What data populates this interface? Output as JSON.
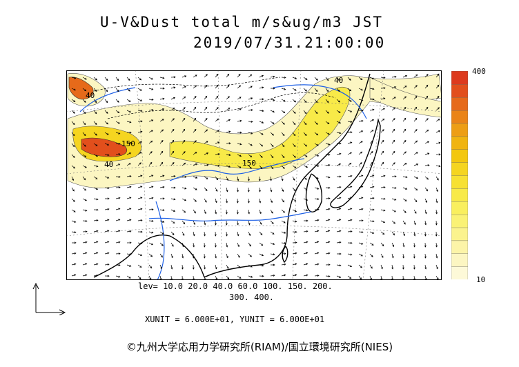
{
  "header": {
    "title": "U-V&Dust total m/s&ug/m3 JST",
    "datetime": "2019/07/31.21:00:00"
  },
  "colorbar": {
    "max_label": "400",
    "min_label": "10",
    "colors": [
      "#fdf9d8",
      "#fcf6c2",
      "#fcf4a8",
      "#fbf38e",
      "#faf275",
      "#f9ef5e",
      "#f8ea48",
      "#f7e133",
      "#f5d520",
      "#f3c70f",
      "#f0b411",
      "#ed9e15",
      "#ea8418",
      "#e66a1a",
      "#e24f1c",
      "#dd3a1e"
    ]
  },
  "levels": {
    "line1": "lev= 10.0 20.0 40.0 60.0 100. 150. 200.",
    "line2": "300. 400."
  },
  "units": "XUNIT = 6.000E+01, YUNIT = 6.000E+01",
  "contour_labels": [
    {
      "text": "40"
    },
    {
      "text": "150"
    },
    {
      "text": "40"
    },
    {
      "text": "150"
    },
    {
      "text": "40"
    }
  ],
  "credit": "©九州大学応用力学研究所(RIAM)/国立環境研究所(NIES)",
  "map_colors": {
    "coast": "#000000",
    "rivers": "#1e60e6",
    "dust_low": "#fcf6c2",
    "dust_mid": "#f8ea48",
    "dust_high": "#e24f1c"
  }
}
